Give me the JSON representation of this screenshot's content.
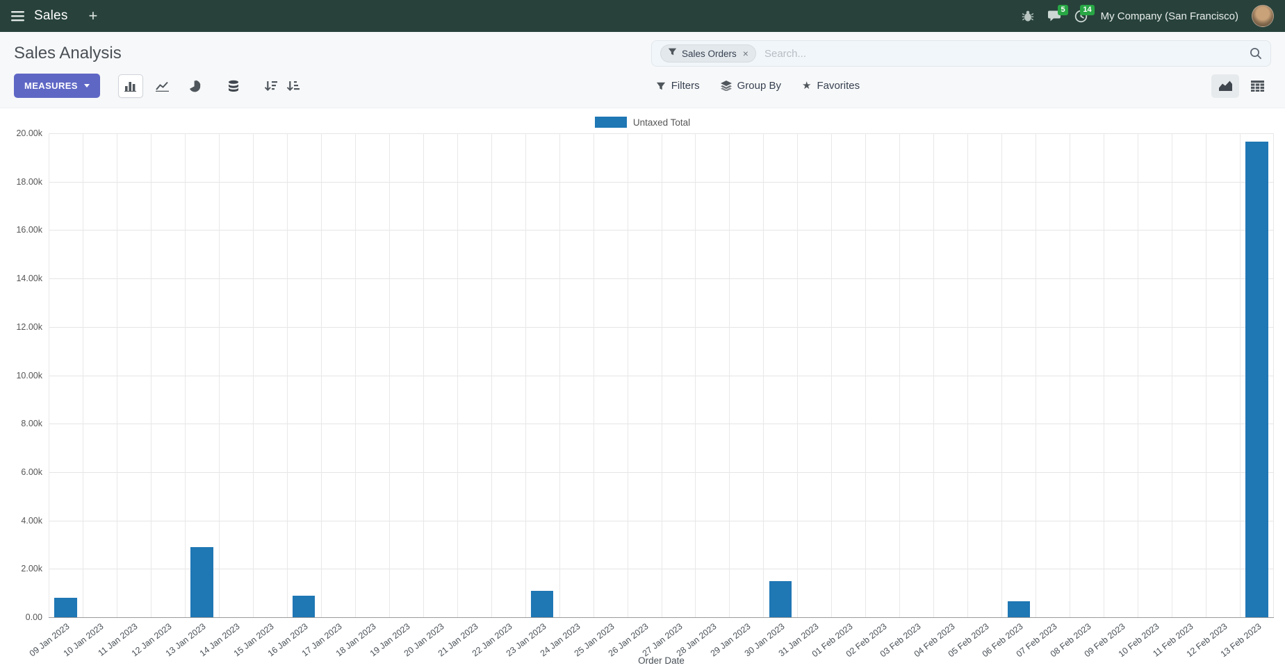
{
  "topbar": {
    "app_name": "Sales",
    "company_name": "My Company (San Francisco)",
    "messages_badge": "5",
    "activities_badge": "14"
  },
  "icons": {
    "plus": "+",
    "close": "×",
    "star": "★"
  },
  "control_panel": {
    "title": "Sales Analysis",
    "measures_button": "MEASURES",
    "filters_button": "Filters",
    "group_by_button": "Group By",
    "favorites_button": "Favorites",
    "search": {
      "facet_label": "Sales Orders",
      "placeholder": "Search..."
    }
  },
  "chart_data": {
    "type": "bar",
    "title": "",
    "xlabel": "Order Date",
    "ylabel": "",
    "ylim": [
      0,
      20000
    ],
    "ytick_step": 2000,
    "legend_position": "top",
    "grid": true,
    "categories": [
      "09 Jan 2023",
      "10 Jan 2023",
      "11 Jan 2023",
      "12 Jan 2023",
      "13 Jan 2023",
      "14 Jan 2023",
      "15 Jan 2023",
      "16 Jan 2023",
      "17 Jan 2023",
      "18 Jan 2023",
      "19 Jan 2023",
      "20 Jan 2023",
      "21 Jan 2023",
      "22 Jan 2023",
      "23 Jan 2023",
      "24 Jan 2023",
      "25 Jan 2023",
      "26 Jan 2023",
      "27 Jan 2023",
      "28 Jan 2023",
      "29 Jan 2023",
      "30 Jan 2023",
      "31 Jan 2023",
      "01 Feb 2023",
      "02 Feb 2023",
      "03 Feb 2023",
      "04 Feb 2023",
      "05 Feb 2023",
      "06 Feb 2023",
      "07 Feb 2023",
      "08 Feb 2023",
      "09 Feb 2023",
      "10 Feb 2023",
      "11 Feb 2023",
      "12 Feb 2023",
      "13 Feb 2023"
    ],
    "series": [
      {
        "name": "Untaxed Total",
        "color": "#1f77b4",
        "values": [
          800,
          0,
          0,
          0,
          2900,
          0,
          0,
          900,
          0,
          0,
          0,
          0,
          0,
          0,
          1080,
          0,
          0,
          0,
          0,
          0,
          0,
          1500,
          0,
          0,
          0,
          0,
          0,
          0,
          650,
          0,
          0,
          0,
          0,
          0,
          0,
          19650
        ]
      }
    ]
  },
  "colors": {
    "topbar_bg": "#28423b",
    "badge_green": "#28a745",
    "primary_button": "#5f67c5",
    "bar_blue": "#1f77b4"
  }
}
